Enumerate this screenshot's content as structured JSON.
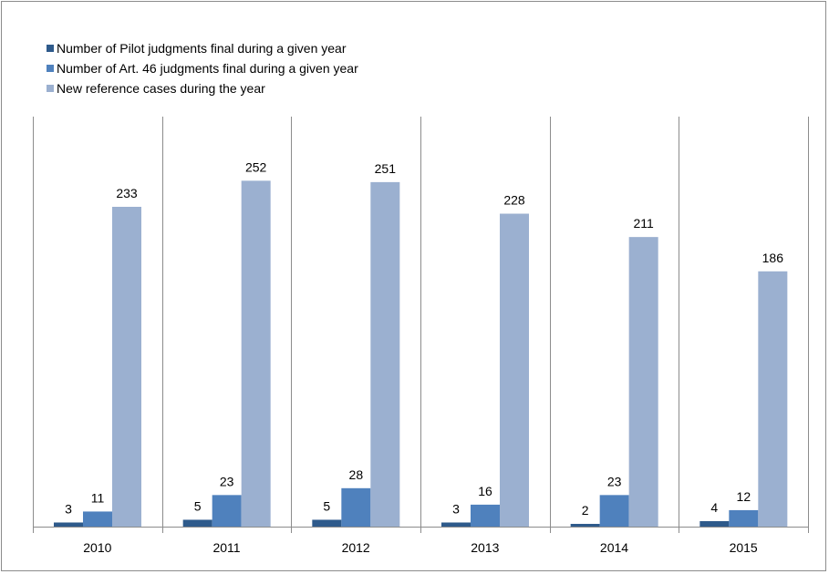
{
  "chart_data": {
    "type": "bar",
    "categories": [
      "2010",
      "2011",
      "2012",
      "2013",
      "2014",
      "2015"
    ],
    "series": [
      {
        "name": "Number of Pilot judgments final during a given year",
        "color": "#2e5a8b",
        "values": [
          3,
          5,
          5,
          3,
          2,
          4
        ]
      },
      {
        "name": "Number of Art. 46 judgments final during a given year",
        "color": "#4f81bd",
        "values": [
          11,
          23,
          28,
          16,
          23,
          12
        ]
      },
      {
        "name": "New reference cases during the year",
        "color": "#9bb0d0",
        "values": [
          233,
          252,
          251,
          228,
          211,
          186
        ]
      }
    ],
    "ylim": [
      0,
      270
    ],
    "grid": false,
    "legend_position": "top-left",
    "data_labels": true
  }
}
